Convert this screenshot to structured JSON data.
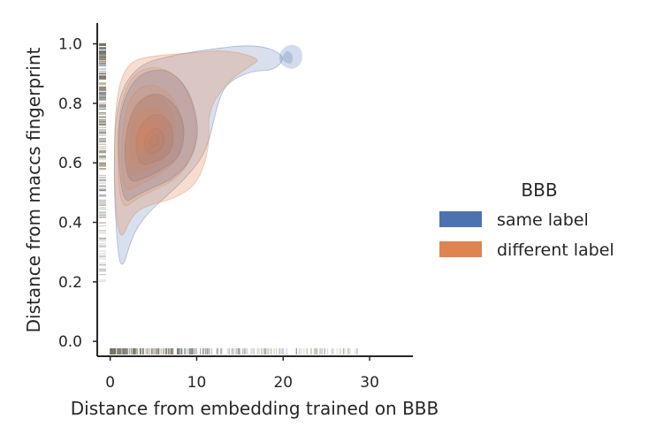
{
  "chart_data": {
    "type": "scatter",
    "subtype": "bivariate-kde-with-rug",
    "title": "",
    "xlabel": "Distance from embedding trained on BBB",
    "ylabel": "Distance from maccs fingerprint",
    "xlim": [
      -1.5,
      35
    ],
    "ylim": [
      -0.05,
      1.07
    ],
    "xticks": [
      "0",
      "10",
      "20",
      "30"
    ],
    "yticks": [
      "0.0",
      "0.2",
      "0.4",
      "0.6",
      "0.8",
      "1.0"
    ],
    "grid": false,
    "legend": {
      "title": "BBB",
      "placement": "right"
    },
    "series": [
      {
        "name": "same label",
        "color": "#4c72b0",
        "kde_mode": [
          5,
          0.67
        ],
        "kde_levels": [
          [
            [
              1.2,
              0.22
            ],
            [
              2.6,
              0.36
            ],
            [
              4.3,
              0.43
            ],
            [
              6.2,
              0.48
            ],
            [
              8.8,
              0.55
            ],
            [
              11.2,
              0.64
            ],
            [
              12.4,
              0.8
            ],
            [
              13.5,
              0.87
            ],
            [
              16.4,
              0.91
            ],
            [
              19,
              0.91
            ],
            [
              20.4,
              0.96
            ],
            [
              17,
              1.0
            ],
            [
              11,
              0.98
            ],
            [
              7,
              0.96
            ],
            [
              3.2,
              0.93
            ],
            [
              0.8,
              0.82
            ],
            [
              0.4,
              0.6
            ],
            [
              0.6,
              0.4
            ]
          ],
          [
            [
              1.5,
              0.46
            ],
            [
              3.0,
              0.49
            ],
            [
              5.2,
              0.52
            ],
            [
              7.5,
              0.55
            ],
            [
              9.6,
              0.62
            ],
            [
              10.3,
              0.72
            ],
            [
              9.1,
              0.85
            ],
            [
              6.5,
              0.92
            ],
            [
              3.2,
              0.9
            ],
            [
              1.3,
              0.8
            ],
            [
              0.8,
              0.65
            ]
          ],
          [
            [
              2.2,
              0.53
            ],
            [
              4.1,
              0.55
            ],
            [
              6.2,
              0.58
            ],
            [
              8.1,
              0.62
            ],
            [
              8.7,
              0.71
            ],
            [
              7.8,
              0.79
            ],
            [
              5.5,
              0.84
            ],
            [
              3.2,
              0.81
            ],
            [
              1.9,
              0.72
            ],
            [
              1.6,
              0.62
            ]
          ],
          [
            [
              3.3,
              0.59
            ],
            [
              4.9,
              0.6
            ],
            [
              6.6,
              0.62
            ],
            [
              7.4,
              0.67
            ],
            [
              7.0,
              0.74
            ],
            [
              5.4,
              0.77
            ],
            [
              3.8,
              0.74
            ],
            [
              2.8,
              0.68
            ]
          ],
          [
            [
              4.1,
              0.63
            ],
            [
              5.1,
              0.63
            ],
            [
              6.1,
              0.65
            ],
            [
              6.3,
              0.69
            ],
            [
              5.6,
              0.72
            ],
            [
              4.6,
              0.71
            ],
            [
              3.9,
              0.68
            ]
          ],
          [
            [
              4.6,
              0.655
            ],
            [
              5.4,
              0.655
            ],
            [
              5.8,
              0.675
            ],
            [
              5.4,
              0.695
            ],
            [
              4.8,
              0.69
            ],
            [
              4.5,
              0.675
            ]
          ]
        ],
        "extra_blobs": [
          [
            [
              19.6,
              0.93
            ],
            [
              21.2,
              0.91
            ],
            [
              22.3,
              0.94
            ],
            [
              22.1,
              0.99
            ],
            [
              20.6,
              1.0
            ],
            [
              19.5,
              0.97
            ]
          ],
          [
            [
              20.0,
              0.94
            ],
            [
              21.0,
              0.93
            ],
            [
              21.2,
              0.96
            ],
            [
              20.5,
              0.98
            ],
            [
              19.9,
              0.96
            ]
          ]
        ]
      },
      {
        "name": "different label",
        "color": "#dd8452",
        "kde_mode": [
          4,
          0.68
        ],
        "kde_levels": [
          [
            [
              1.0,
              0.32
            ],
            [
              2.6,
              0.43
            ],
            [
              4.6,
              0.46
            ],
            [
              7.5,
              0.48
            ],
            [
              10.1,
              0.53
            ],
            [
              11.5,
              0.65
            ],
            [
              11.3,
              0.78
            ],
            [
              13.8,
              0.88
            ],
            [
              16.5,
              0.93
            ],
            [
              17.4,
              0.95
            ],
            [
              13.5,
              0.98
            ],
            [
              9.5,
              0.97
            ],
            [
              5,
              0.96
            ],
            [
              2,
              0.94
            ],
            [
              0.6,
              0.82
            ],
            [
              0.4,
              0.55
            ]
          ],
          [
            [
              1.3,
              0.44
            ],
            [
              3.0,
              0.48
            ],
            [
              5.2,
              0.51
            ],
            [
              7.9,
              0.55
            ],
            [
              9.7,
              0.63
            ],
            [
              10.0,
              0.75
            ],
            [
              8.6,
              0.87
            ],
            [
              5.6,
              0.93
            ],
            [
              2.5,
              0.9
            ],
            [
              1.0,
              0.78
            ],
            [
              0.8,
              0.6
            ]
          ],
          [
            [
              1.7,
              0.5
            ],
            [
              3.6,
              0.53
            ],
            [
              5.7,
              0.56
            ],
            [
              7.8,
              0.61
            ],
            [
              8.6,
              0.71
            ],
            [
              7.5,
              0.82
            ],
            [
              5.0,
              0.87
            ],
            [
              2.5,
              0.84
            ],
            [
              1.4,
              0.72
            ],
            [
              1.3,
              0.58
            ]
          ],
          [
            [
              2.1,
              0.55
            ],
            [
              4.0,
              0.57
            ],
            [
              6.0,
              0.6
            ],
            [
              7.4,
              0.66
            ],
            [
              7.5,
              0.75
            ],
            [
              6.2,
              0.82
            ],
            [
              4.2,
              0.83
            ],
            [
              2.4,
              0.78
            ],
            [
              1.7,
              0.67
            ]
          ],
          [
            [
              2.6,
              0.59
            ],
            [
              4.3,
              0.6
            ],
            [
              5.9,
              0.63
            ],
            [
              6.8,
              0.68
            ],
            [
              6.7,
              0.75
            ],
            [
              5.3,
              0.79
            ],
            [
              3.6,
              0.78
            ],
            [
              2.4,
              0.72
            ],
            [
              2.2,
              0.64
            ]
          ],
          [
            [
              3.1,
              0.62
            ],
            [
              4.4,
              0.63
            ],
            [
              5.6,
              0.65
            ],
            [
              6.1,
              0.7
            ],
            [
              5.8,
              0.75
            ],
            [
              4.6,
              0.76
            ],
            [
              3.4,
              0.74
            ],
            [
              2.8,
              0.68
            ]
          ],
          [
            [
              3.5,
              0.65
            ],
            [
              4.5,
              0.655
            ],
            [
              5.2,
              0.67
            ],
            [
              5.4,
              0.71
            ],
            [
              4.9,
              0.73
            ],
            [
              3.9,
              0.72
            ],
            [
              3.3,
              0.69
            ]
          ],
          [
            [
              3.9,
              0.67
            ],
            [
              4.6,
              0.675
            ],
            [
              4.8,
              0.7
            ],
            [
              4.4,
              0.715
            ],
            [
              3.8,
              0.705
            ],
            [
              3.7,
              0.685
            ]
          ]
        ]
      }
    ],
    "rug": {
      "x_axis_range": [
        0,
        29
      ],
      "y_axis_range": [
        0.2,
        1.0
      ]
    }
  }
}
